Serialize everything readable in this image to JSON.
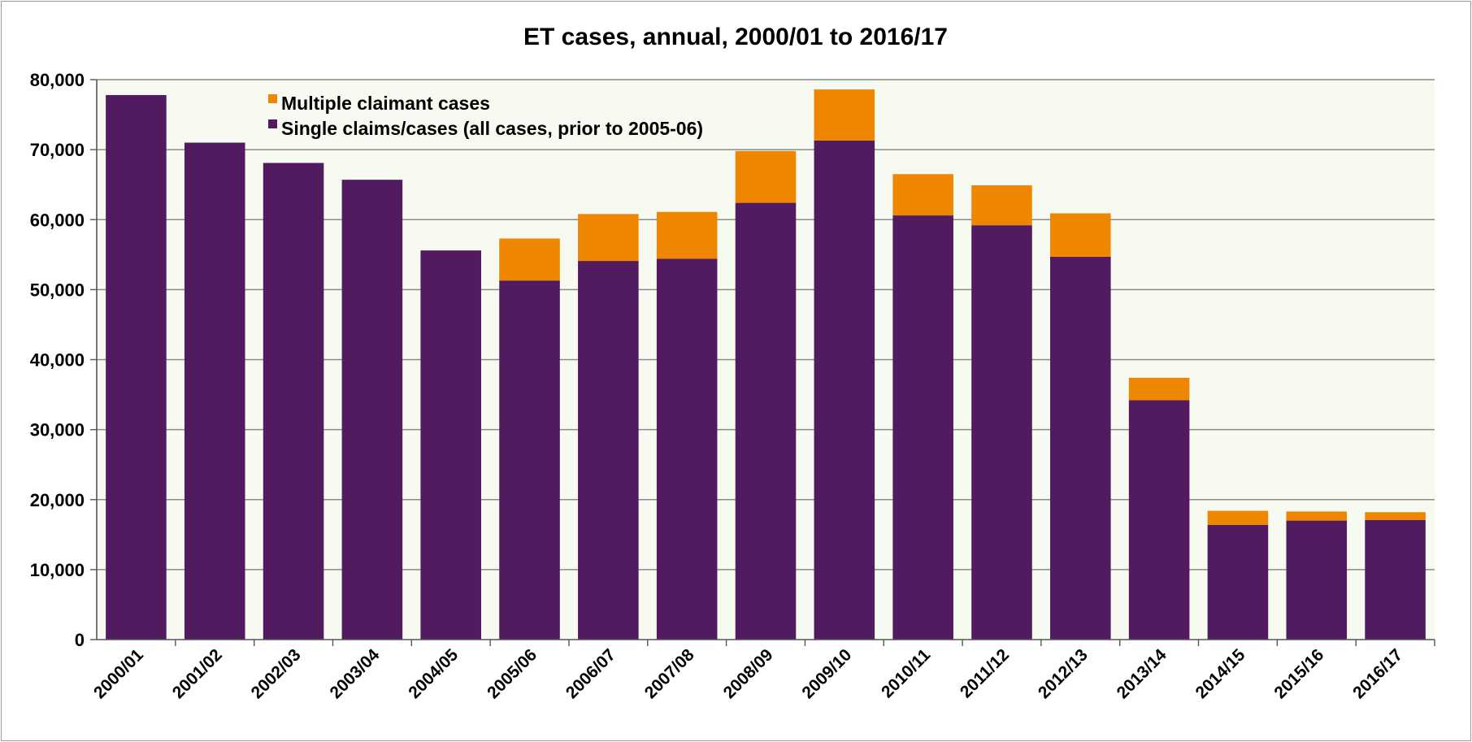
{
  "chart_data": {
    "type": "bar",
    "stacked": true,
    "title": "ET cases, annual, 2000/01 to 2016/17",
    "xlabel": "",
    "ylabel": "",
    "ylim": [
      0,
      80000
    ],
    "yticks": [
      0,
      10000,
      20000,
      30000,
      40000,
      50000,
      60000,
      70000,
      80000
    ],
    "ytick_labels": [
      "0",
      "10,000",
      "20,000",
      "30,000",
      "40,000",
      "50,000",
      "60,000",
      "70,000",
      "80,000"
    ],
    "grid": true,
    "legend_position": "top-left",
    "categories": [
      "2000/01",
      "2001/02",
      "2002/03",
      "2003/04",
      "2004/05",
      "2005/06",
      "2006/07",
      "2007/08",
      "2008/09",
      "2009/10",
      "2010/11",
      "2011/12",
      "2012/13",
      "2013/14",
      "2014/15",
      "2015/16",
      "2016/17"
    ],
    "series": [
      {
        "name": "Single claims/cases (all cases, prior to 2005-06)",
        "color": "#521a5f",
        "values": [
          77800,
          71000,
          68100,
          65700,
          55600,
          51300,
          54100,
          54400,
          62400,
          71300,
          60600,
          59200,
          54700,
          34200,
          16400,
          17000,
          17100
        ]
      },
      {
        "name": "Multiple claimant cases",
        "color": "#ee8600",
        "values": [
          0,
          0,
          0,
          0,
          0,
          6000,
          6700,
          6700,
          7400,
          7300,
          5900,
          5700,
          6200,
          3200,
          2000,
          1300,
          1100
        ]
      }
    ],
    "legend": [
      "Multiple claimant cases",
      "Single claims/cases (all cases, prior to 2005-06)"
    ],
    "colors": {
      "plot_background": "#f7faf1",
      "gridline": "#8a8a8a"
    }
  }
}
